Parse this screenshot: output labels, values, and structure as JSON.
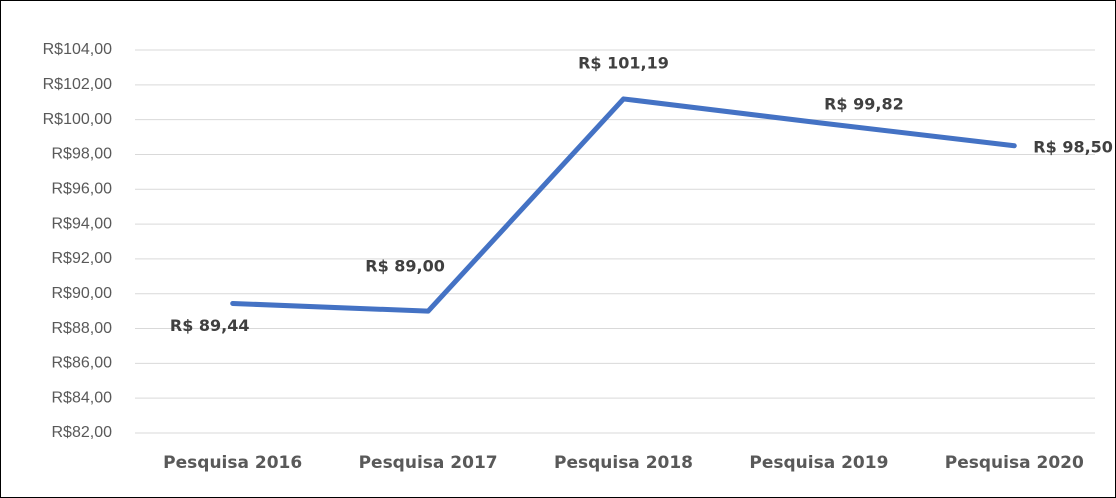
{
  "chart_data": {
    "type": "line",
    "categories": [
      "Pesquisa 2016",
      "Pesquisa 2017",
      "Pesquisa 2018",
      "Pesquisa 2019",
      "Pesquisa 2020"
    ],
    "series": [
      {
        "color": "#4472c4",
        "values": [
          89.44,
          89.0,
          101.19,
          99.82,
          98.5
        ],
        "value_labels": [
          "R$ 89,44",
          "R$ 89,00",
          "R$ 101,19",
          "R$ 99,82",
          "R$ 98,50"
        ]
      }
    ],
    "ylim": [
      82,
      104
    ],
    "yticks": [
      {
        "value": 82,
        "label": "R$82,00"
      },
      {
        "value": 84,
        "label": "R$84,00"
      },
      {
        "value": 86,
        "label": "R$86,00"
      },
      {
        "value": 88,
        "label": "R$88,00"
      },
      {
        "value": 90,
        "label": "R$90,00"
      },
      {
        "value": 92,
        "label": "R$92,00"
      },
      {
        "value": 94,
        "label": "R$94,00"
      },
      {
        "value": 96,
        "label": "R$96,00"
      },
      {
        "value": 98,
        "label": "R$98,00"
      },
      {
        "value": 100,
        "label": "R$100,00"
      },
      {
        "value": 102,
        "label": "R$102,00"
      },
      {
        "value": 104,
        "label": "R$104,00"
      }
    ],
    "grid": true
  }
}
